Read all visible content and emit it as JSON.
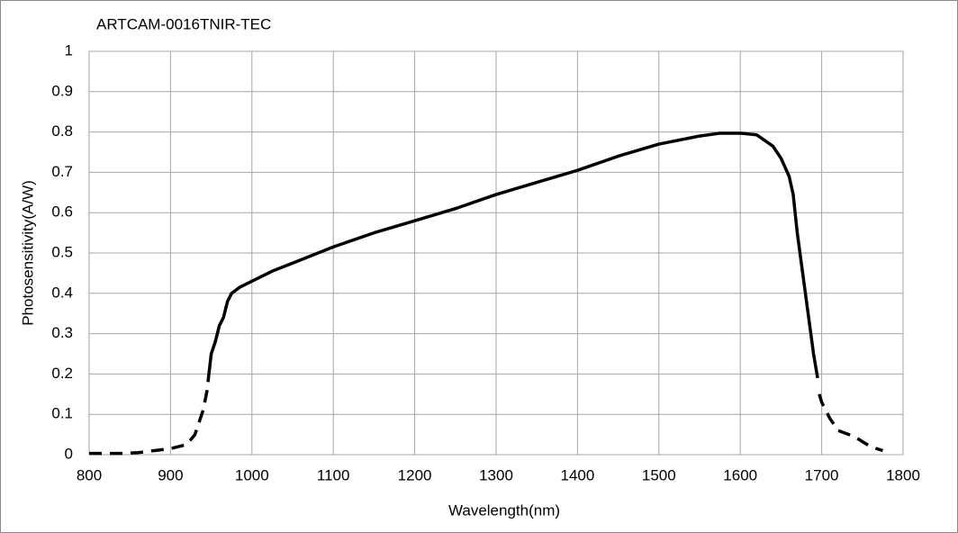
{
  "chart_data": {
    "type": "line",
    "title": "ARTCAM-0016TNIR-TEC",
    "x_label": "Wavelength(nm)",
    "y_label": "Photosensitivity(A/W)",
    "xlim": [
      800,
      1800
    ],
    "xticks": [
      800,
      900,
      1000,
      1100,
      1200,
      1300,
      1400,
      1500,
      1600,
      1700,
      1800
    ],
    "ylim": [
      0,
      1
    ],
    "yticks": [
      0,
      0.1,
      0.2,
      0.3,
      0.4,
      0.5,
      0.6,
      0.7,
      0.8,
      0.9,
      1
    ],
    "grid": true,
    "series": [
      {
        "color": "#000000",
        "style": "dashed",
        "x": [
          800,
          820,
          840,
          860,
          880,
          900,
          920,
          930,
          940,
          946
        ],
        "values": [
          0.003,
          0.003,
          0.003,
          0.005,
          0.01,
          0.015,
          0.025,
          0.05,
          0.11,
          0.17
        ]
      },
      {
        "color": "#000000",
        "style": "solid",
        "x": [
          946,
          950,
          955,
          960,
          965,
          970,
          975,
          985,
          1000,
          1025,
          1050,
          1075,
          1100,
          1150,
          1200,
          1250,
          1300,
          1350,
          1400,
          1450,
          1500,
          1550,
          1575,
          1600,
          1620,
          1640,
          1650,
          1660,
          1665,
          1670,
          1680,
          1690,
          1695
        ],
        "values": [
          0.18,
          0.25,
          0.28,
          0.32,
          0.34,
          0.38,
          0.4,
          0.415,
          0.43,
          0.455,
          0.475,
          0.495,
          0.515,
          0.55,
          0.58,
          0.61,
          0.645,
          0.675,
          0.705,
          0.74,
          0.77,
          0.79,
          0.797,
          0.797,
          0.793,
          0.765,
          0.735,
          0.69,
          0.645,
          0.55,
          0.4,
          0.25,
          0.19
        ]
      },
      {
        "color": "#000000",
        "style": "dashed",
        "x": [
          1697,
          1700,
          1710,
          1720,
          1740,
          1760,
          1775
        ],
        "values": [
          0.15,
          0.13,
          0.09,
          0.06,
          0.045,
          0.02,
          0.01
        ]
      }
    ]
  }
}
